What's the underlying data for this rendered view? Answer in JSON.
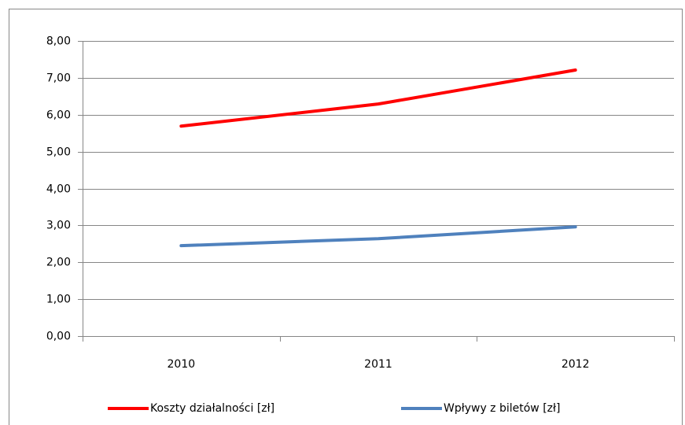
{
  "chart_data": {
    "type": "line",
    "categories": [
      "2010",
      "2011",
      "2012"
    ],
    "series": [
      {
        "name": "Koszty działalności [zł]",
        "color": "#ff0000",
        "values": [
          5.69,
          6.29,
          7.21
        ]
      },
      {
        "name": "Wpływy z biletów [zł]",
        "color": "#4f81bd",
        "values": [
          2.45,
          2.64,
          2.96
        ]
      }
    ],
    "ylim": [
      0,
      8
    ],
    "yticks": [
      {
        "value": 0,
        "label": "0,00"
      },
      {
        "value": 1,
        "label": "1,00"
      },
      {
        "value": 2,
        "label": "2,00"
      },
      {
        "value": 3,
        "label": "3,00"
      },
      {
        "value": 4,
        "label": "4,00"
      },
      {
        "value": 5,
        "label": "5,00"
      },
      {
        "value": 6,
        "label": "6,00"
      },
      {
        "value": 7,
        "label": "7,00"
      },
      {
        "value": 8,
        "label": "8,00"
      }
    ],
    "grid": true,
    "legend": "bottom"
  }
}
